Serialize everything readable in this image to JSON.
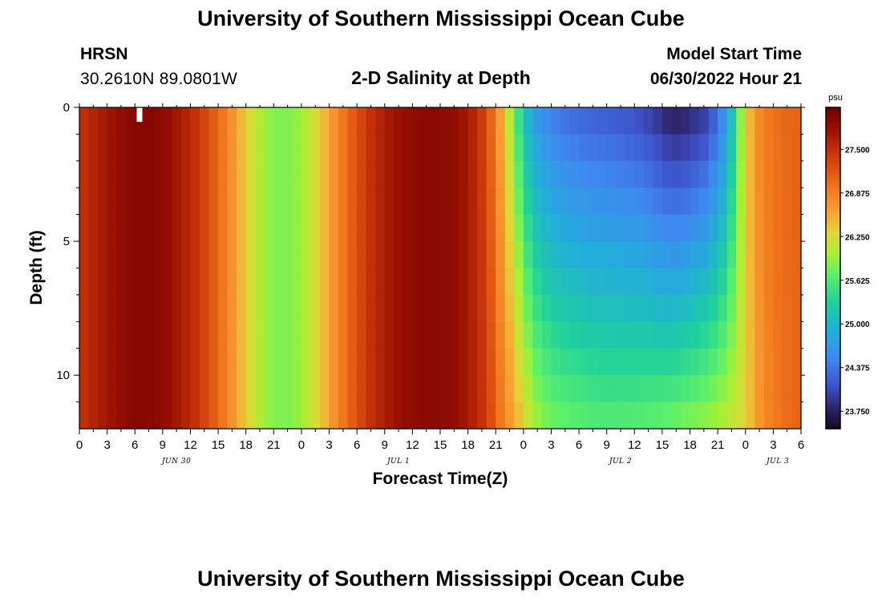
{
  "header": {
    "title": "University of Southern Mississippi Ocean Cube",
    "station": "HRSN",
    "coords": "30.2610N  89.0801W",
    "subtitle": "2-D Salinity at Depth",
    "start_label": "Model Start Time",
    "start_value": "06/30/2022 Hour 21"
  },
  "footer": {
    "title": "University of Southern Mississippi Ocean Cube"
  },
  "chart_data": {
    "type": "heatmap",
    "title": "2-D Salinity at Depth",
    "xlabel": "Forecast Time(Z)",
    "ylabel": "Depth (ft)",
    "x_range_hours": [
      0,
      78
    ],
    "x_tick_step_hours": 3,
    "x_tick_labels": [
      "0",
      "3",
      "6",
      "9",
      "12",
      "15",
      "18",
      "21",
      "0",
      "3",
      "6",
      "9",
      "12",
      "15",
      "18",
      "21",
      "0",
      "3",
      "6",
      "9",
      "12",
      "15",
      "18",
      "21",
      "0",
      "3",
      "6"
    ],
    "date_labels": [
      {
        "label": "JUN 30",
        "hour": 10.5
      },
      {
        "label": "JUL 1",
        "hour": 34.5
      },
      {
        "label": "JUL 2",
        "hour": 58.5
      },
      {
        "label": "JUL 3",
        "hour": 75.5
      }
    ],
    "y_range_ft": [
      0,
      12
    ],
    "y_major_ticks": [
      0,
      5,
      10
    ],
    "y_tick_labels": [
      "0",
      "5",
      "10"
    ],
    "depth_levels_ft": [
      0,
      1,
      2,
      3,
      4,
      5,
      6,
      7,
      8,
      9,
      10,
      11
    ],
    "time_hours": [
      0,
      2,
      4,
      6,
      8,
      10,
      12,
      14,
      16,
      18,
      20,
      22,
      24,
      26,
      28,
      30,
      32,
      34,
      36,
      38,
      40,
      42,
      44,
      46,
      48,
      49,
      50,
      51,
      52,
      54,
      56,
      58,
      60,
      62,
      64,
      66,
      68,
      70,
      72,
      73,
      74,
      76,
      78
    ],
    "surface_salinity_psu": [
      27.45,
      27.65,
      27.8,
      27.92,
      27.92,
      27.78,
      27.55,
      27.25,
      26.85,
      26.35,
      25.95,
      25.8,
      25.95,
      26.35,
      26.85,
      27.25,
      27.55,
      27.75,
      27.85,
      27.9,
      27.85,
      27.7,
      27.3,
      26.4,
      25.2,
      24.8,
      24.6,
      24.5,
      24.4,
      24.3,
      24.25,
      24.2,
      24.15,
      24.0,
      23.78,
      23.85,
      24.05,
      24.7,
      26.3,
      26.7,
      26.9,
      27.05,
      27.1
    ],
    "bottom_salinity_psu": [
      27.45,
      27.65,
      27.8,
      27.92,
      27.92,
      27.78,
      27.55,
      27.25,
      26.85,
      26.35,
      25.95,
      25.8,
      25.95,
      26.35,
      26.85,
      27.25,
      27.55,
      27.75,
      27.85,
      27.9,
      27.85,
      27.7,
      27.4,
      26.8,
      26.3,
      26.0,
      25.85,
      25.75,
      25.7,
      25.65,
      25.6,
      25.6,
      25.62,
      25.65,
      25.7,
      25.8,
      25.9,
      26.05,
      26.3,
      26.6,
      26.8,
      27.0,
      27.1
    ],
    "missing_cells": [
      {
        "hour": 6.5,
        "depth_ft": 0.3
      }
    ],
    "colorbar": {
      "unit": "psu",
      "min": 23.5,
      "max": 28.1,
      "tick_values": [
        27.5,
        26.875,
        26.25,
        25.625,
        25.0,
        24.375,
        23.75
      ],
      "tick_labels": [
        "27.500",
        "26.875",
        "26.250",
        "25.625",
        "25.000",
        "24.375",
        "23.750"
      ],
      "colormap": [
        {
          "v": 23.5,
          "c": "#150722"
        },
        {
          "v": 23.75,
          "c": "#2a1f5e"
        },
        {
          "v": 24.1,
          "c": "#3e4fc6"
        },
        {
          "v": 24.5,
          "c": "#3f88f0"
        },
        {
          "v": 24.9,
          "c": "#22aeda"
        },
        {
          "v": 25.3,
          "c": "#1ecf9e"
        },
        {
          "v": 25.7,
          "c": "#5cf06a"
        },
        {
          "v": 26.0,
          "c": "#a8f032"
        },
        {
          "v": 26.3,
          "c": "#e0d836"
        },
        {
          "v": 26.6,
          "c": "#fba236"
        },
        {
          "v": 26.9,
          "c": "#f27e1e"
        },
        {
          "v": 27.2,
          "c": "#e05412"
        },
        {
          "v": 27.5,
          "c": "#c22e08"
        },
        {
          "v": 27.8,
          "c": "#960e02"
        },
        {
          "v": 28.1,
          "c": "#6e0000"
        }
      ]
    }
  }
}
